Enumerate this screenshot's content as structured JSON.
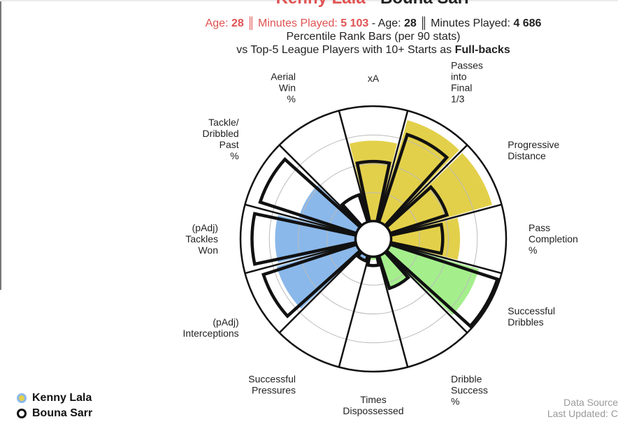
{
  "header": {
    "player1": "Kenny Lala",
    "separator": " - ",
    "player2": "Bouna Sarr",
    "age_label": "Age: ",
    "age_label_2": " - Age: ",
    "player1_age": "28",
    "player2_age": "28",
    "divider": " ║ ",
    "minutes_label": "Minutes Played: ",
    "player1_minutes": "5 103",
    "player2_minutes": "4 686",
    "desc_line1": "Percentile Rank Bars (per 90 stats)",
    "desc_line2_prefix": "vs Top-5 League Players with 10+ Starts as ",
    "desc_line2_bold": "Full-backs"
  },
  "legend": {
    "player1": "Kenny Lala",
    "player2": "Bouna Sarr"
  },
  "source": {
    "line1": "Data Source",
    "line2": "Last Updated: C"
  },
  "colors": {
    "attacking": "#e3d04a",
    "possession": "#a4ef8c",
    "defending": "#8ab8ea",
    "outline": "#111111",
    "grid": "#bbbbbb"
  },
  "chart_data": {
    "type": "radial-bar",
    "title": "Kenny Lala - Bouna Sarr",
    "rlim": [
      0,
      100
    ],
    "gridlines": [
      25,
      50,
      75
    ],
    "categories": [
      {
        "label": [
          "xA"
        ],
        "group": "attacking"
      },
      {
        "label": [
          "Passes",
          "into",
          "Final",
          "1/3"
        ],
        "group": "attacking"
      },
      {
        "label": [
          "Progressive",
          "Distance"
        ],
        "group": "attacking"
      },
      {
        "label": [
          "Pass",
          "Completion",
          "%"
        ],
        "group": "attacking"
      },
      {
        "label": [
          "Successful",
          "Dribbles"
        ],
        "group": "possession"
      },
      {
        "label": [
          "Dribble",
          "Success",
          "%"
        ],
        "group": "possession"
      },
      {
        "label": [
          "Times",
          "Dispossessed"
        ],
        "group": "possession"
      },
      {
        "label": [
          "Successful",
          "Pressures"
        ],
        "group": "defending"
      },
      {
        "label": [
          "(pAdj)",
          "Interceptions"
        ],
        "group": "defending"
      },
      {
        "label": [
          "(pAdj)",
          "Tackles",
          "Won"
        ],
        "group": "defending"
      },
      {
        "label": [
          "Tackle/",
          "Dribbled",
          "Past",
          "%"
        ],
        "group": "defending"
      },
      {
        "label": [
          "Aerial",
          "Win",
          "%"
        ],
        "group": "defending"
      }
    ],
    "series": [
      {
        "name": "Kenny Lala",
        "type": "filled",
        "values": [
          70,
          92,
          92,
          60,
          80,
          30,
          3,
          5,
          72,
          70,
          52,
          0
        ]
      },
      {
        "name": "Bouna Sarr",
        "type": "outline",
        "values": [
          52,
          80,
          52,
          45,
          98,
          30,
          8,
          5,
          85,
          90,
          88,
          25
        ]
      }
    ]
  }
}
